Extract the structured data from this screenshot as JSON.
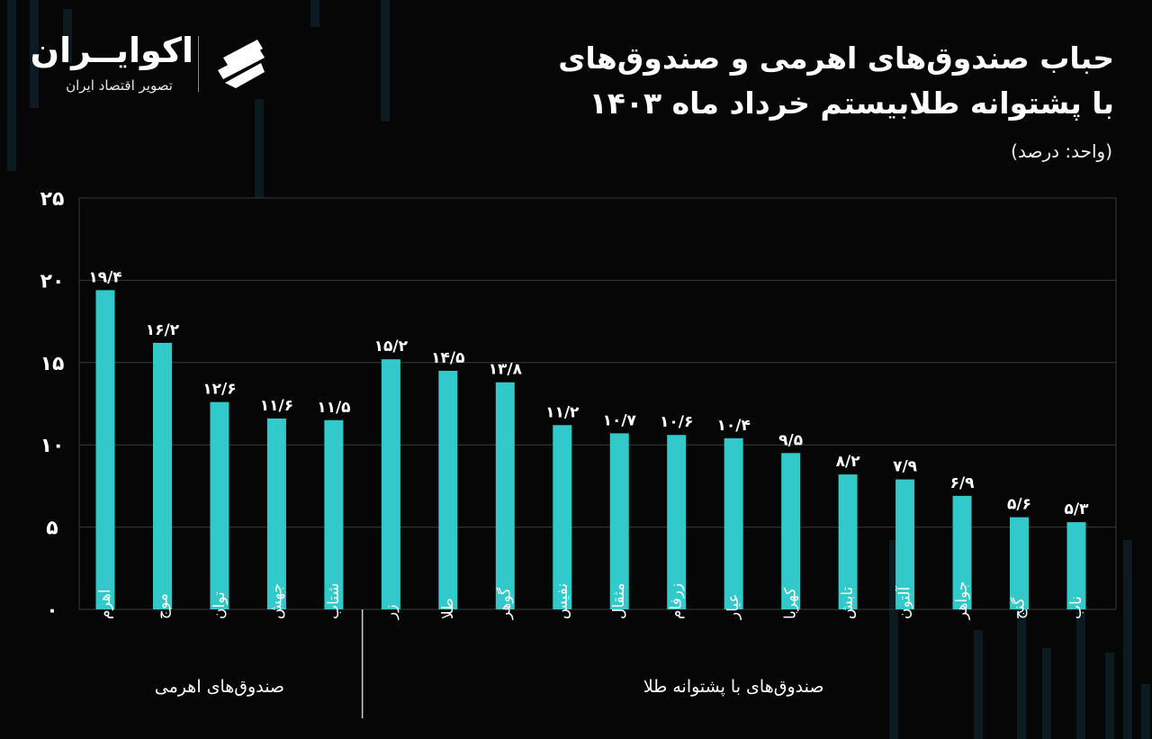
{
  "header": {
    "title_line1": "حباب صندوق‌های اهرمی و صندوق‌های",
    "title_line2": "با پشتوانه طلابیستم خرداد ماه ۱۴۰۳",
    "unit": "(واحد: درصد)"
  },
  "brand": {
    "name": "اکوایــران",
    "tagline": "تصویر اقتصاد ایران",
    "logo_icon": "ecoiran-logo-icon"
  },
  "colors": {
    "background": "#060606",
    "bar": "#31C9C9",
    "grid": "#3a3a3a",
    "text": "#ffffff"
  },
  "chart_data": {
    "type": "bar",
    "title": "حباب صندوق‌های اهرمی و صندوق‌های با پشتوانه طلابیستم خرداد ماه ۱۴۰۳",
    "ylabel": "",
    "ylim": [
      0,
      25
    ],
    "yticks": [
      0,
      5,
      10,
      15,
      20,
      25
    ],
    "ytick_labels": [
      "۰",
      "۵",
      "۱۰",
      "۱۵",
      "۲۰",
      "۲۵"
    ],
    "grid": true,
    "categories": [
      "اهرم",
      "موج",
      "توان",
      "جهش",
      "شتاب",
      "زر",
      "طلا",
      "گوهر",
      "نفیس",
      "مثقال",
      "زرفام",
      "عیار",
      "کهربا",
      "تابش",
      "آلتون",
      "جواهر",
      "گنج",
      "ناب"
    ],
    "values": [
      19.4,
      16.2,
      12.6,
      11.6,
      11.5,
      15.2,
      14.5,
      13.8,
      11.2,
      10.7,
      10.6,
      10.4,
      9.5,
      8.2,
      7.9,
      6.9,
      5.6,
      5.3
    ],
    "value_labels": [
      "۱۹/۴",
      "۱۶/۲",
      "۱۲/۶",
      "۱۱/۶",
      "۱۱/۵",
      "۱۵/۲",
      "۱۴/۵",
      "۱۳/۸",
      "۱۱/۲",
      "۱۰/۷",
      "۱۰/۶",
      "۱۰/۴",
      "۹/۵",
      "۸/۲",
      "۷/۹",
      "۶/۹",
      "۵/۶",
      "۵/۳"
    ],
    "groups": [
      {
        "name": "صندوق‌های اهرمی",
        "count": 5
      },
      {
        "name": "صندوق‌های با پشتوانه طلا",
        "count": 13
      }
    ]
  }
}
